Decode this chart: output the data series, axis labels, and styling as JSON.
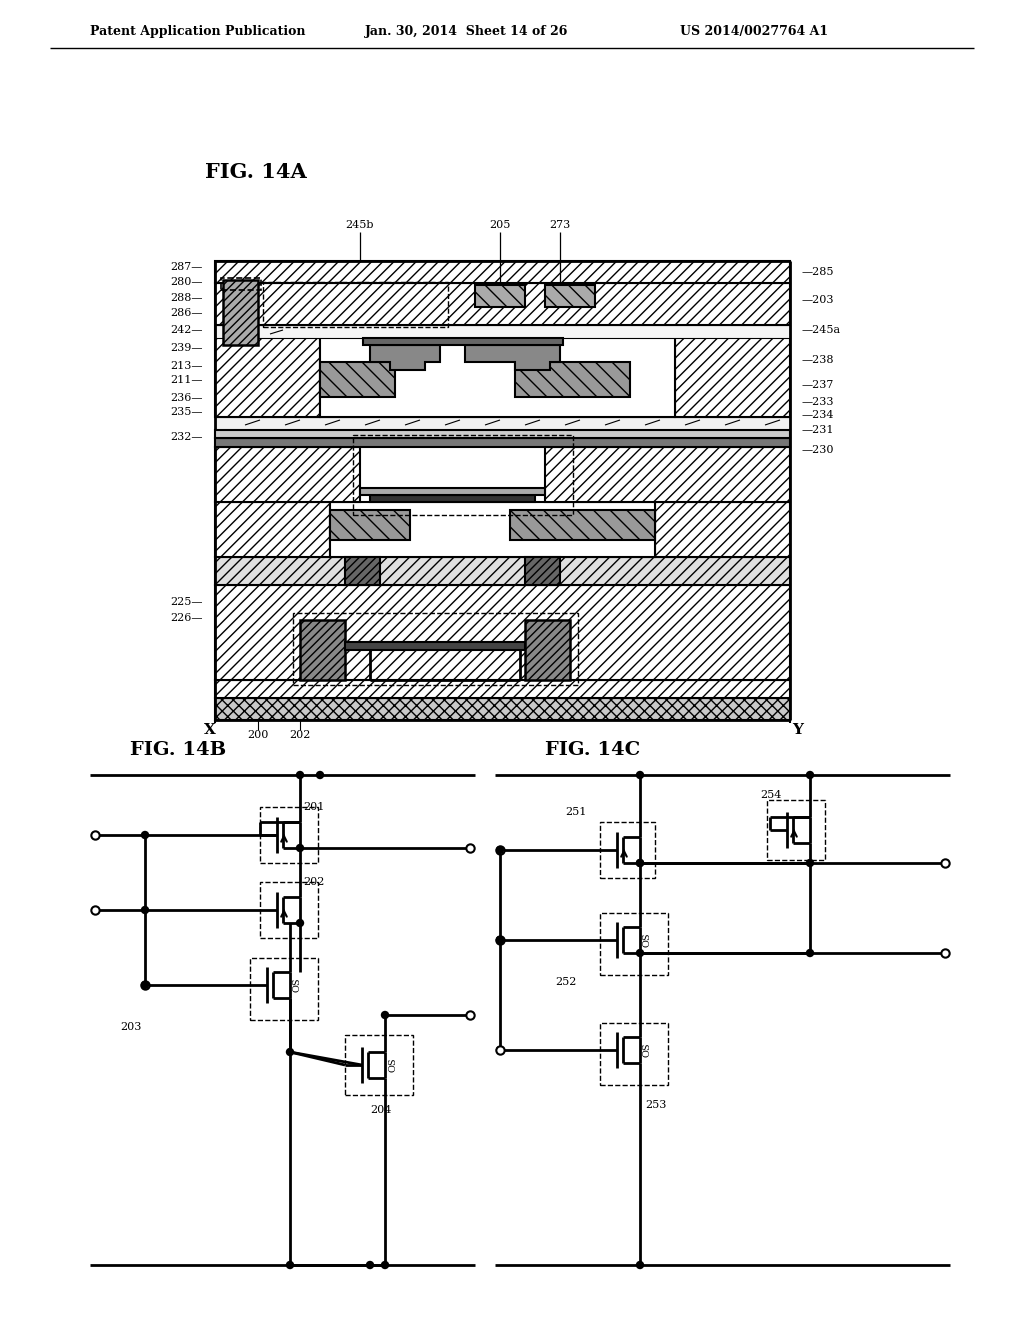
{
  "header_left": "Patent Application Publication",
  "header_mid": "Jan. 30, 2014  Sheet 14 of 26",
  "header_right": "US 2014/0027764 A1",
  "fig14a_label": "FIG. 14A",
  "fig14b_label": "FIG. 14B",
  "fig14c_label": "FIG. 14C",
  "bg_color": "#ffffff"
}
